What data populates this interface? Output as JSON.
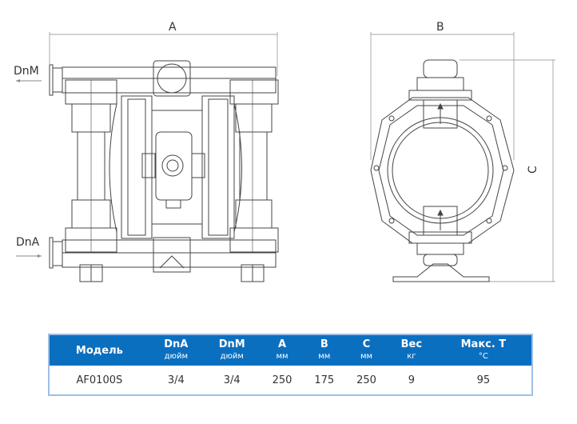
{
  "drawing": {
    "dimension_a": "A",
    "dimension_b": "B",
    "dimension_c": "C",
    "outlet_label": "DnM",
    "inlet_label": "DnA"
  },
  "table": {
    "headers": [
      {
        "label": "Модель",
        "unit": ""
      },
      {
        "label": "DnA",
        "unit": "дюйм"
      },
      {
        "label": "DnM",
        "unit": "дюйм"
      },
      {
        "label": "A",
        "unit": "мм"
      },
      {
        "label": "B",
        "unit": "мм"
      },
      {
        "label": "C",
        "unit": "мм"
      },
      {
        "label": "Вес",
        "unit": "кг"
      },
      {
        "label": "Макс. T",
        "unit": "°C"
      }
    ],
    "rows": [
      [
        "AF0100S",
        "3/4",
        "3/4",
        "250",
        "175",
        "250",
        "9",
        "95"
      ]
    ],
    "header_color": "#0b6fc0"
  }
}
